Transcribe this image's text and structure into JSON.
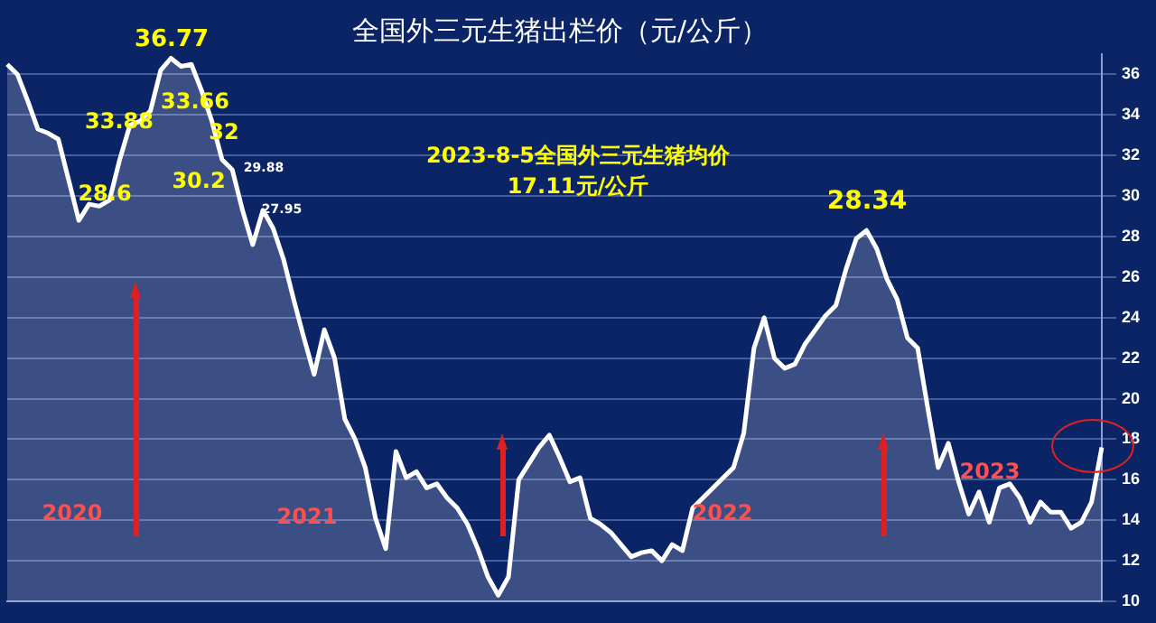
{
  "chart_data": {
    "type": "area",
    "title": "全国外三元生猪出栏价（元/公斤）",
    "categories": [
      null,
      null,
      null,
      null,
      null,
      null,
      null,
      null,
      null,
      null,
      null,
      null,
      null,
      null,
      null,
      null,
      null,
      null,
      null,
      null,
      null,
      null,
      null,
      null,
      null,
      null,
      null,
      null,
      null,
      null,
      null,
      null,
      null,
      null,
      null,
      null,
      null,
      null,
      null,
      null,
      null,
      null,
      null,
      null,
      null,
      null,
      null,
      null,
      null,
      null,
      null,
      null,
      null,
      null,
      null,
      null,
      null,
      null,
      null,
      null,
      null,
      null,
      null,
      null,
      null,
      null,
      null,
      null,
      null,
      null,
      null,
      null,
      null,
      null,
      null,
      null,
      null,
      null,
      null,
      null,
      null,
      null,
      null,
      null,
      null,
      null,
      null,
      null,
      null,
      null,
      null,
      null,
      null,
      null,
      null,
      null,
      null,
      null,
      null,
      null,
      null,
      null,
      null,
      null,
      null,
      null,
      null,
      null
    ],
    "series": [
      {
        "color": "#ffffff",
        "values": [
          36.5,
          36.0,
          34.7,
          33.3,
          33.1,
          32.8,
          30.8,
          28.8,
          29.6,
          29.5,
          29.8,
          31.8,
          33.5,
          33.7,
          34.2,
          36.2,
          36.8,
          36.4,
          36.5,
          35.2,
          33.7,
          31.8,
          31.3,
          29.3,
          27.6,
          29.3,
          28.4,
          26.9,
          24.9,
          23.0,
          21.2,
          23.4,
          22.0,
          19.0,
          18.0,
          16.6,
          14.1,
          12.6,
          17.4,
          16.1,
          16.4,
          15.6,
          15.8,
          15.1,
          14.6,
          13.8,
          12.6,
          11.2,
          10.3,
          11.2,
          16.0,
          16.8,
          17.6,
          18.2,
          17.1,
          15.9,
          16.1,
          14.1,
          13.8,
          13.4,
          12.8,
          12.2,
          12.4,
          12.5,
          12.0,
          12.8,
          12.5,
          14.6,
          15.1,
          15.6,
          16.1,
          16.6,
          18.3,
          22.5,
          24.0,
          22.0,
          21.5,
          21.7,
          22.7,
          23.4,
          24.1,
          24.6,
          26.4,
          27.9,
          28.3,
          27.4,
          25.9,
          24.9,
          23.0,
          22.5,
          19.5,
          16.6,
          17.8,
          15.9,
          14.3,
          15.4,
          13.9,
          15.6,
          15.8,
          15.1,
          13.9,
          14.9,
          14.4,
          14.4,
          13.6,
          13.9,
          14.9,
          17.6
        ]
      }
    ],
    "ylim": [
      10,
      37
    ],
    "yticks": [
      10,
      12,
      14,
      16,
      18,
      20,
      22,
      24,
      26,
      28,
      30,
      32,
      34,
      36
    ],
    "grid": "y",
    "tick_labels": "y",
    "annotations": [
      "36.77",
      "33.88",
      "33.66",
      "32",
      "28.6",
      "30.2",
      "29.88",
      "27.95",
      "28.34",
      "2023-8-5全国外三元生猪均价",
      "17.11元/公斤",
      "2020",
      "2021",
      "2022",
      "2023"
    ]
  }
}
